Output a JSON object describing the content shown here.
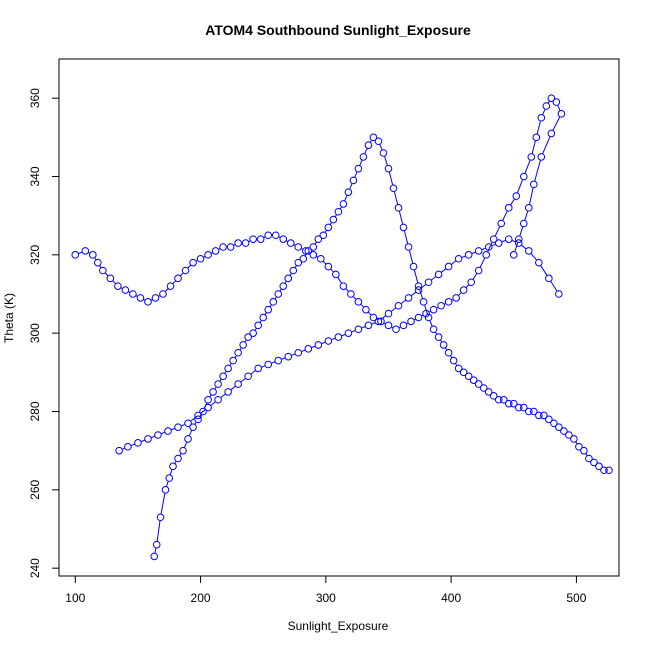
{
  "chart_data": {
    "type": "scatter",
    "title": "ATOM4 Southbound Sunlight_Exposure",
    "xlabel": "Sunlight_Exposure",
    "ylabel": "Theta (K)",
    "xlim": [
      87,
      534
    ],
    "ylim": [
      238,
      370
    ],
    "x_ticks": [
      100,
      200,
      300,
      400,
      500
    ],
    "y_ticks": [
      240,
      260,
      280,
      300,
      320,
      340,
      360
    ],
    "grid": false,
    "legend": "none",
    "series": [
      {
        "style": "points-and-lines",
        "marker": "open-circle",
        "color": "#0000ff",
        "x": [
          163,
          165,
          168,
          172,
          175,
          178,
          182,
          186,
          190,
          194,
          198,
          202,
          206,
          210,
          214,
          218,
          222,
          226,
          230,
          234,
          238,
          242,
          246,
          250,
          254,
          258,
          262,
          266,
          270,
          274,
          278,
          282,
          286,
          290,
          294,
          298,
          302,
          306,
          310,
          314,
          318,
          322,
          326,
          330,
          334,
          338,
          342,
          346,
          350,
          354,
          358,
          362,
          366,
          370,
          374,
          378,
          382,
          386,
          390,
          394,
          398,
          402,
          406,
          410,
          414,
          418,
          422,
          426,
          430,
          434,
          438,
          442,
          446,
          450,
          454,
          458,
          462,
          466,
          470,
          474,
          478,
          482,
          486,
          490,
          494,
          498,
          502,
          506,
          510,
          514,
          518,
          522,
          526
        ],
        "y": [
          243,
          246,
          253,
          260,
          263,
          266,
          268,
          270,
          273,
          276,
          278,
          280,
          283,
          285,
          287,
          289,
          291,
          293,
          295,
          297,
          299,
          300,
          302,
          304,
          306,
          308,
          310,
          312,
          314,
          316,
          318,
          319,
          321,
          322,
          324,
          325,
          327,
          329,
          331,
          333,
          336,
          339,
          342,
          345,
          348,
          350,
          349,
          346,
          342,
          337,
          332,
          327,
          322,
          317,
          312,
          308,
          304,
          301,
          299,
          297,
          295,
          293,
          291,
          290,
          289,
          288,
          287,
          286,
          285,
          284,
          283,
          283,
          282,
          282,
          281,
          281,
          280,
          280,
          279,
          279,
          278,
          277,
          276,
          275,
          274,
          273,
          271,
          270,
          268,
          267,
          266,
          265,
          265
        ]
      },
      {
        "style": "points-and-lines",
        "marker": "open-circle",
        "color": "#0000ff",
        "x": [
          100,
          108,
          114,
          118,
          122,
          128,
          134,
          140,
          146,
          152,
          158,
          164,
          170,
          176,
          182,
          188,
          194,
          200,
          206,
          212,
          218,
          224,
          230,
          236,
          242,
          248,
          254,
          260,
          266,
          272,
          278,
          284,
          290,
          296,
          302,
          308,
          314,
          320,
          326,
          332,
          338,
          344,
          350,
          356,
          362,
          368,
          374,
          380,
          386,
          392,
          398,
          404,
          410,
          416,
          422,
          428,
          434,
          440,
          446,
          452,
          458,
          464,
          468,
          472,
          476,
          480,
          484,
          488,
          480,
          472,
          466,
          462,
          458,
          454,
          450
        ],
        "y": [
          320,
          321,
          320,
          318,
          316,
          314,
          312,
          311,
          310,
          309,
          308,
          309,
          310,
          312,
          314,
          316,
          318,
          319,
          320,
          321,
          322,
          322,
          323,
          323,
          324,
          324,
          325,
          325,
          324,
          323,
          322,
          321,
          320,
          319,
          317,
          315,
          312,
          310,
          308,
          306,
          304,
          303,
          302,
          301,
          302,
          303,
          304,
          305,
          306,
          307,
          308,
          309,
          311,
          313,
          316,
          320,
          324,
          328,
          332,
          335,
          340,
          345,
          350,
          355,
          358,
          360,
          359,
          356,
          351,
          345,
          338,
          332,
          328,
          324,
          320
        ]
      },
      {
        "style": "points-and-lines",
        "marker": "open-circle",
        "color": "#0000ff",
        "x": [
          135,
          142,
          150,
          158,
          166,
          174,
          182,
          190,
          198,
          206,
          214,
          222,
          230,
          238,
          246,
          254,
          262,
          270,
          278,
          286,
          294,
          302,
          310,
          318,
          326,
          334,
          342,
          350,
          358,
          366,
          374,
          382,
          390,
          398,
          406,
          414,
          422,
          430,
          438,
          446,
          454,
          462,
          470,
          478,
          486
        ],
        "y": [
          270,
          271,
          272,
          273,
          274,
          275,
          276,
          277,
          279,
          281,
          283,
          285,
          287,
          289,
          291,
          292,
          293,
          294,
          295,
          296,
          297,
          298,
          299,
          300,
          301,
          302,
          303,
          305,
          307,
          309,
          311,
          313,
          315,
          317,
          319,
          320,
          321,
          322,
          323,
          324,
          323,
          321,
          318,
          314,
          310
        ]
      }
    ]
  }
}
